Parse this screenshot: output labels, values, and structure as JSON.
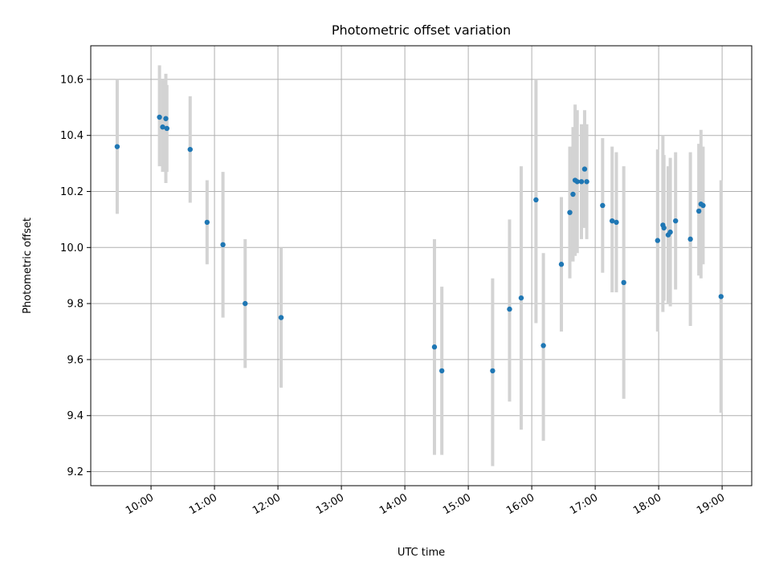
{
  "chart_data": {
    "type": "scatter",
    "title": "Photometric offset variation",
    "xlabel": "UTC time",
    "ylabel": "Photometric offset",
    "x_ticks": [
      "10:00",
      "11:00",
      "12:00",
      "13:00",
      "14:00",
      "15:00",
      "16:00",
      "17:00",
      "18:00",
      "19:00"
    ],
    "y_ticks": [
      "9.2",
      "9.4",
      "9.6",
      "9.8",
      "10.0",
      "10.2",
      "10.4",
      "10.6"
    ],
    "xlim": [
      "09:03",
      "19:28"
    ],
    "ylim": [
      9.15,
      10.72
    ],
    "grid": true,
    "colors": {
      "point": "#1f77b4",
      "errorbar": "#d3d3d3",
      "grid": "#b0b0b0"
    },
    "points": [
      {
        "x": "09:28",
        "y": 10.36,
        "lo": 10.12,
        "hi": 10.6
      },
      {
        "x": "10:08",
        "y": 10.465,
        "lo": 10.29,
        "hi": 10.65
      },
      {
        "x": "10:11",
        "y": 10.43,
        "lo": 10.27,
        "hi": 10.6
      },
      {
        "x": "10:14",
        "y": 10.46,
        "lo": 10.23,
        "hi": 10.62
      },
      {
        "x": "10:15",
        "y": 10.425,
        "lo": 10.27,
        "hi": 10.58
      },
      {
        "x": "10:37",
        "y": 10.35,
        "lo": 10.16,
        "hi": 10.54
      },
      {
        "x": "10:53",
        "y": 10.09,
        "lo": 9.94,
        "hi": 10.24
      },
      {
        "x": "11:08",
        "y": 10.01,
        "lo": 9.75,
        "hi": 10.27
      },
      {
        "x": "11:29",
        "y": 9.8,
        "lo": 9.57,
        "hi": 10.03
      },
      {
        "x": "12:03",
        "y": 9.75,
        "lo": 9.5,
        "hi": 10.0
      },
      {
        "x": "14:28",
        "y": 9.645,
        "lo": 9.26,
        "hi": 10.03
      },
      {
        "x": "14:35",
        "y": 9.56,
        "lo": 9.26,
        "hi": 9.86
      },
      {
        "x": "15:23",
        "y": 9.56,
        "lo": 9.22,
        "hi": 9.89
      },
      {
        "x": "15:39",
        "y": 9.78,
        "lo": 9.45,
        "hi": 10.1
      },
      {
        "x": "15:50",
        "y": 9.82,
        "lo": 9.35,
        "hi": 10.29
      },
      {
        "x": "16:04",
        "y": 10.17,
        "lo": 9.73,
        "hi": 10.6
      },
      {
        "x": "16:11",
        "y": 9.65,
        "lo": 9.31,
        "hi": 9.98
      },
      {
        "x": "16:28",
        "y": 9.94,
        "lo": 9.7,
        "hi": 10.18
      },
      {
        "x": "16:36",
        "y": 10.125,
        "lo": 9.89,
        "hi": 10.36
      },
      {
        "x": "16:39",
        "y": 10.19,
        "lo": 9.95,
        "hi": 10.43
      },
      {
        "x": "16:41",
        "y": 10.24,
        "lo": 9.97,
        "hi": 10.51
      },
      {
        "x": "16:43",
        "y": 10.235,
        "lo": 9.98,
        "hi": 10.49
      },
      {
        "x": "16:47",
        "y": 10.235,
        "lo": 10.03,
        "hi": 10.44
      },
      {
        "x": "16:50",
        "y": 10.28,
        "lo": 10.07,
        "hi": 10.49
      },
      {
        "x": "16:52",
        "y": 10.235,
        "lo": 10.03,
        "hi": 10.44
      },
      {
        "x": "17:07",
        "y": 10.15,
        "lo": 9.91,
        "hi": 10.39
      },
      {
        "x": "17:16",
        "y": 10.095,
        "lo": 9.84,
        "hi": 10.36
      },
      {
        "x": "17:20",
        "y": 10.09,
        "lo": 9.84,
        "hi": 10.34
      },
      {
        "x": "17:27",
        "y": 9.875,
        "lo": 9.46,
        "hi": 10.29
      },
      {
        "x": "17:59",
        "y": 10.025,
        "lo": 9.7,
        "hi": 10.35
      },
      {
        "x": "18:04",
        "y": 10.08,
        "lo": 9.77,
        "hi": 10.4
      },
      {
        "x": "18:05",
        "y": 10.07,
        "lo": 9.81,
        "hi": 10.33
      },
      {
        "x": "18:09",
        "y": 10.045,
        "lo": 9.8,
        "hi": 10.29
      },
      {
        "x": "18:11",
        "y": 10.055,
        "lo": 9.79,
        "hi": 10.32
      },
      {
        "x": "18:16",
        "y": 10.095,
        "lo": 9.85,
        "hi": 10.34
      },
      {
        "x": "18:30",
        "y": 10.03,
        "lo": 9.72,
        "hi": 10.34
      },
      {
        "x": "18:38",
        "y": 10.13,
        "lo": 9.9,
        "hi": 10.37
      },
      {
        "x": "18:40",
        "y": 10.155,
        "lo": 9.89,
        "hi": 10.42
      },
      {
        "x": "18:42",
        "y": 10.15,
        "lo": 9.94,
        "hi": 10.36
      },
      {
        "x": "18:59",
        "y": 9.825,
        "lo": 9.41,
        "hi": 10.24
      }
    ]
  }
}
